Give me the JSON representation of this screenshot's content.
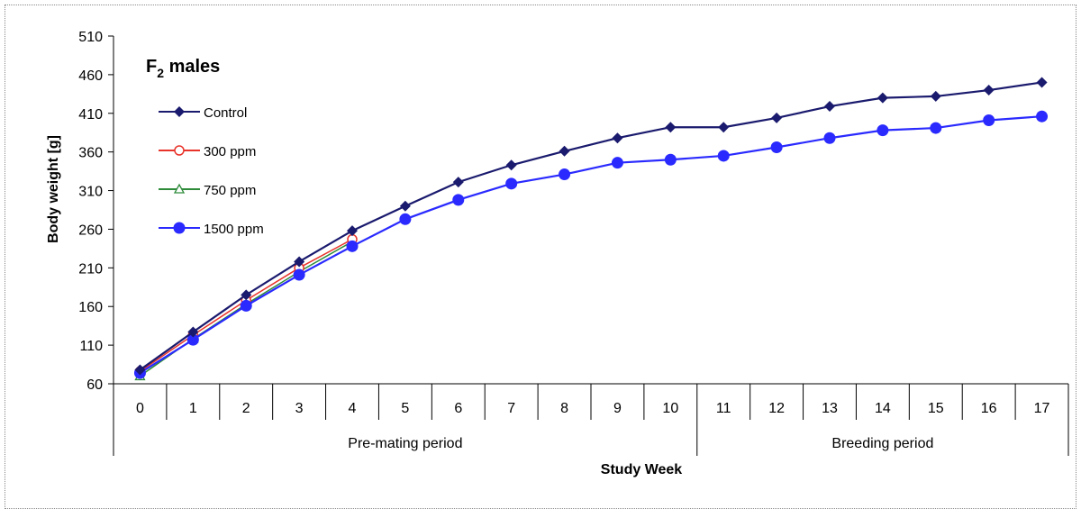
{
  "chart_data": {
    "type": "line",
    "title": "F",
    "title_subscript": "2",
    "title_rest": " males",
    "xlabel": "Study Week",
    "ylabel": "Body weight  [g]",
    "x": [
      0,
      1,
      2,
      3,
      4,
      5,
      6,
      7,
      8,
      9,
      10,
      11,
      12,
      13,
      14,
      15,
      16,
      17
    ],
    "x_groups": [
      {
        "label": "Pre-mating period",
        "from": 0,
        "to": 10
      },
      {
        "label": "Breeding period",
        "from": 11,
        "to": 17
      }
    ],
    "ylim": [
      60,
      510
    ],
    "yticks": [
      60,
      110,
      160,
      210,
      260,
      310,
      360,
      410,
      460,
      510
    ],
    "grid": false,
    "legend_position": "top-left",
    "series": [
      {
        "name": "Control",
        "color": "#1a1a6e",
        "marker": "diamond",
        "values": [
          78,
          127,
          175,
          218,
          258,
          290,
          321,
          343,
          361,
          378,
          392,
          392,
          404,
          419,
          430,
          432,
          440,
          450
        ]
      },
      {
        "name": "300 ppm",
        "color": "#e8332a",
        "marker": "circle-open",
        "values": [
          76,
          123,
          168,
          210,
          247,
          null,
          null,
          null,
          null,
          null,
          null,
          null,
          null,
          null,
          null,
          null,
          null,
          null
        ]
      },
      {
        "name": "750 ppm",
        "color": "#2e8b3a",
        "marker": "triangle-open",
        "values": [
          70,
          118,
          163,
          205,
          244,
          null,
          null,
          null,
          null,
          null,
          null,
          null,
          null,
          null,
          null,
          null,
          null,
          null
        ]
      },
      {
        "name": "1500 ppm",
        "color": "#2a2aff",
        "marker": "circle",
        "values": [
          74,
          117,
          161,
          201,
          238,
          273,
          298,
          319,
          331,
          346,
          350,
          355,
          366,
          378,
          388,
          391,
          401,
          406
        ]
      }
    ]
  }
}
